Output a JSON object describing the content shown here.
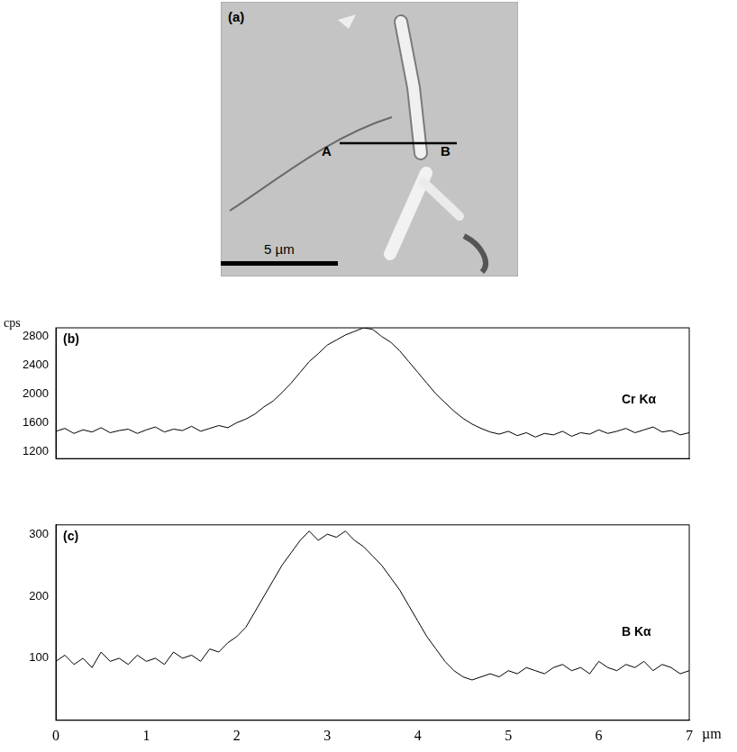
{
  "micrograph": {
    "panel_label": "(a)",
    "line_start": "A",
    "line_end": "B",
    "scale_bar": "5 µm"
  },
  "chart_data": [
    {
      "type": "line",
      "panel_label": "(b)",
      "y_label": "cps",
      "x": [
        0,
        0.1,
        0.2,
        0.3,
        0.4,
        0.5,
        0.6,
        0.7,
        0.8,
        0.9,
        1,
        1.1,
        1.2,
        1.3,
        1.4,
        1.5,
        1.6,
        1.7,
        1.8,
        1.9,
        2,
        2.1,
        2.2,
        2.3,
        2.4,
        2.5,
        2.6,
        2.7,
        2.8,
        2.9,
        3,
        3.1,
        3.2,
        3.3,
        3.4,
        3.5,
        3.6,
        3.7,
        3.8,
        3.9,
        4,
        4.1,
        4.2,
        4.3,
        4.4,
        4.5,
        4.6,
        4.7,
        4.8,
        4.9,
        5,
        5.1,
        5.2,
        5.3,
        5.4,
        5.5,
        5.6,
        5.7,
        5.8,
        5.9,
        6,
        6.1,
        6.2,
        6.3,
        6.4,
        6.5,
        6.6,
        6.7,
        6.8,
        6.9,
        7
      ],
      "series": [
        {
          "name": "Cr Kα",
          "color": "#000000",
          "values": [
            1480,
            1520,
            1450,
            1500,
            1470,
            1530,
            1460,
            1490,
            1510,
            1450,
            1500,
            1540,
            1470,
            1510,
            1490,
            1550,
            1480,
            1520,
            1560,
            1530,
            1600,
            1650,
            1720,
            1820,
            1900,
            2020,
            2150,
            2300,
            2450,
            2560,
            2680,
            2750,
            2820,
            2870,
            2920,
            2900,
            2800,
            2720,
            2600,
            2450,
            2300,
            2150,
            2000,
            1880,
            1760,
            1660,
            1580,
            1520,
            1470,
            1440,
            1480,
            1420,
            1460,
            1400,
            1450,
            1430,
            1480,
            1410,
            1460,
            1440,
            1500,
            1450,
            1480,
            1520,
            1460,
            1500,
            1540,
            1470,
            1490,
            1430,
            1460
          ]
        }
      ],
      "xlim": [
        0,
        7
      ],
      "xticks": [
        0,
        1,
        2,
        3,
        4,
        5,
        6,
        7
      ],
      "ylim": [
        1100,
        2920
      ],
      "yticks": [
        1200,
        1600,
        2000,
        2400,
        2800
      ],
      "grid": false,
      "tick_labels": "y"
    },
    {
      "type": "line",
      "panel_label": "(c)",
      "x_label": "µm",
      "x": [
        0,
        0.1,
        0.2,
        0.3,
        0.4,
        0.5,
        0.6,
        0.7,
        0.8,
        0.9,
        1,
        1.1,
        1.2,
        1.3,
        1.4,
        1.5,
        1.6,
        1.7,
        1.8,
        1.9,
        2,
        2.1,
        2.2,
        2.3,
        2.4,
        2.5,
        2.6,
        2.7,
        2.8,
        2.9,
        3,
        3.1,
        3.2,
        3.3,
        3.4,
        3.5,
        3.6,
        3.7,
        3.8,
        3.9,
        4,
        4.1,
        4.2,
        4.3,
        4.4,
        4.5,
        4.6,
        4.7,
        4.8,
        4.9,
        5,
        5.1,
        5.2,
        5.3,
        5.4,
        5.5,
        5.6,
        5.7,
        5.8,
        5.9,
        6,
        6.1,
        6.2,
        6.3,
        6.4,
        6.5,
        6.6,
        6.7,
        6.8,
        6.9,
        7
      ],
      "series": [
        {
          "name": "B Kα",
          "color": "#000000",
          "values": [
            95,
            105,
            90,
            100,
            85,
            110,
            95,
            100,
            90,
            105,
            95,
            100,
            90,
            110,
            100,
            105,
            95,
            115,
            110,
            125,
            135,
            150,
            175,
            200,
            225,
            250,
            270,
            290,
            305,
            290,
            300,
            295,
            305,
            290,
            280,
            265,
            250,
            230,
            210,
            185,
            160,
            135,
            115,
            95,
            80,
            70,
            65,
            70,
            75,
            70,
            80,
            75,
            85,
            80,
            75,
            85,
            90,
            80,
            85,
            75,
            95,
            85,
            80,
            90,
            85,
            95,
            80,
            90,
            85,
            75,
            80
          ]
        }
      ],
      "xlim": [
        0,
        7
      ],
      "xticks": [
        0,
        1,
        2,
        3,
        4,
        5,
        6,
        7
      ],
      "ylim": [
        0,
        315
      ],
      "yticks": [
        100,
        200,
        300
      ],
      "grid": false,
      "tick_labels": true
    }
  ]
}
